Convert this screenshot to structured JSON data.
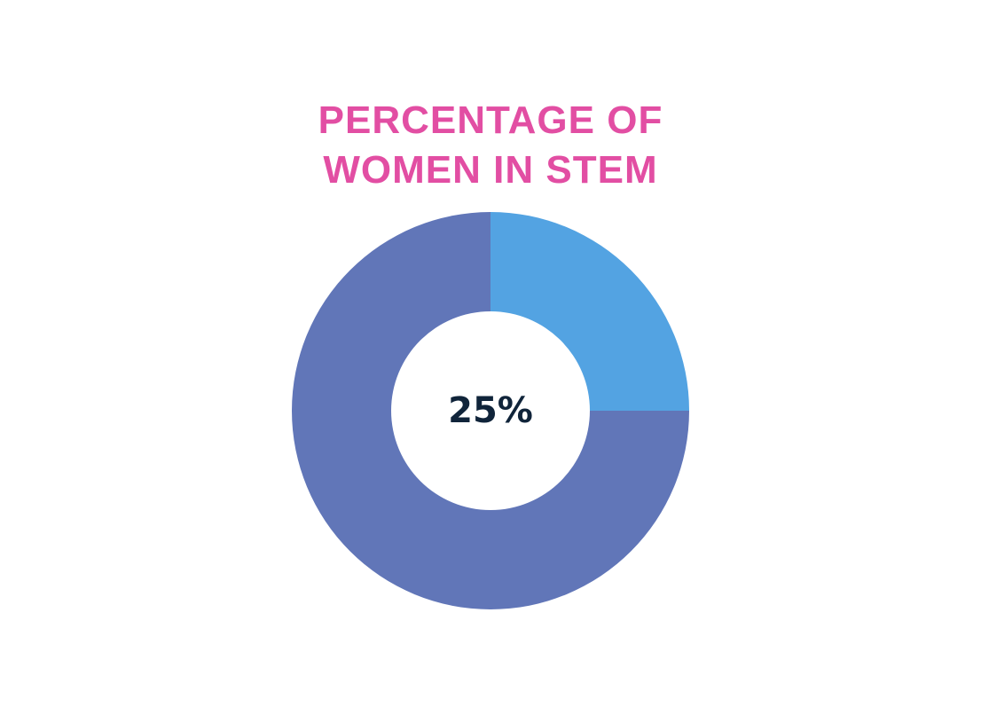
{
  "title_lines": [
    "PERCENTAGE OF",
    "WOMEN IN STEM"
  ],
  "colors": {
    "title": "#e24ea3",
    "highlight_slice": "#53a3e2",
    "remainder_slice": "#6176b8",
    "center_text": "#10243a",
    "background": "#ffffff"
  },
  "chart_data": {
    "type": "pie",
    "title": "PERCENTAGE OF WOMEN IN STEM",
    "style": "donut",
    "slices": [
      {
        "value": 25
      },
      {
        "value": 75
      }
    ],
    "center_label": "25%"
  }
}
